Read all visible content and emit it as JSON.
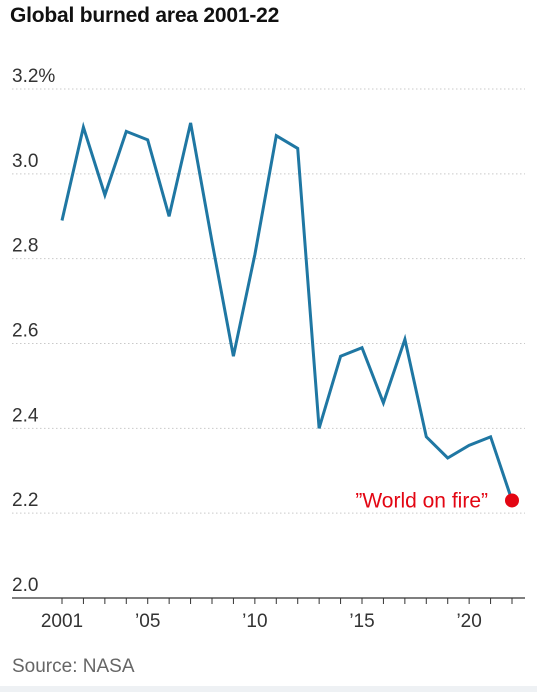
{
  "chart_data": {
    "type": "line",
    "title": "Global burned area 2001-22",
    "source": "Source: NASA",
    "x": [
      2001,
      2002,
      2003,
      2004,
      2005,
      2006,
      2007,
      2008,
      2009,
      2010,
      2011,
      2012,
      2013,
      2014,
      2015,
      2016,
      2017,
      2018,
      2019,
      2020,
      2021,
      2022
    ],
    "series": [
      {
        "values": [
          2.89,
          3.11,
          2.95,
          3.1,
          3.08,
          2.9,
          3.12,
          2.84,
          2.57,
          2.81,
          3.09,
          3.06,
          2.4,
          2.57,
          2.59,
          2.46,
          2.61,
          2.38,
          2.33,
          2.36,
          2.38,
          2.23
        ],
        "color": "#1f77a3"
      }
    ],
    "y_ticks": [
      {
        "value": 3.2,
        "label": "3.2%"
      },
      {
        "value": 3.0,
        "label": "3.0"
      },
      {
        "value": 2.8,
        "label": "2.8"
      },
      {
        "value": 2.6,
        "label": "2.6"
      },
      {
        "value": 2.4,
        "label": "2.4"
      },
      {
        "value": 2.2,
        "label": "2.2"
      },
      {
        "value": 2.0,
        "label": "2.0"
      }
    ],
    "x_ticks": [
      {
        "value": 2001,
        "label": "2001"
      },
      {
        "value": 2005,
        "label": "’05"
      },
      {
        "value": 2010,
        "label": "’10"
      },
      {
        "value": 2015,
        "label": "’15"
      },
      {
        "value": 2020,
        "label": "’20"
      }
    ],
    "ylim": [
      2.0,
      3.2
    ],
    "xlim": [
      2001,
      2022
    ],
    "grid": true,
    "annotation": {
      "text": "”World on fire”",
      "x": 2022,
      "y": 2.23,
      "color": "#e30613"
    }
  }
}
